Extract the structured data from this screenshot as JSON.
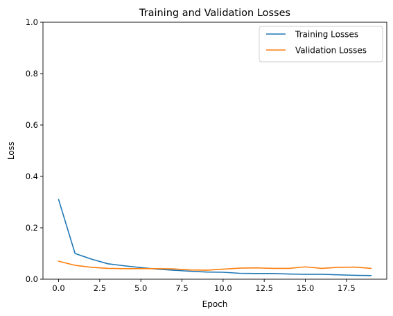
{
  "chart_data": {
    "type": "line",
    "title": "Training and Validation Losses",
    "xlabel": "Epoch",
    "ylabel": "Loss",
    "xlim": [
      -0.95,
      19.95
    ],
    "ylim": [
      0,
      1
    ],
    "xticks": [
      0.0,
      2.5,
      5.0,
      7.5,
      10.0,
      12.5,
      15.0,
      17.5
    ],
    "xtick_labels": [
      "0.0",
      "2.5",
      "5.0",
      "7.5",
      "10.0",
      "12.5",
      "15.0",
      "17.5"
    ],
    "yticks": [
      0.0,
      0.2,
      0.4,
      0.6,
      0.8,
      1.0
    ],
    "ytick_labels": [
      "0.0",
      "0.2",
      "0.4",
      "0.6",
      "0.8",
      "1.0"
    ],
    "grid": false,
    "legend_position": "top-right",
    "x": [
      0,
      1,
      2,
      3,
      4,
      5,
      6,
      7,
      8,
      9,
      10,
      11,
      12,
      13,
      14,
      15,
      16,
      17,
      18,
      19
    ],
    "series": [
      {
        "name": "Training Losses",
        "color": "#1f77b4",
        "values": [
          0.31,
          0.1,
          0.078,
          0.06,
          0.052,
          0.045,
          0.039,
          0.035,
          0.031,
          0.028,
          0.027,
          0.023,
          0.022,
          0.022,
          0.02,
          0.019,
          0.019,
          0.017,
          0.015,
          0.014
        ]
      },
      {
        "name": "Validation Losses",
        "color": "#ff7f0e",
        "values": [
          0.07,
          0.054,
          0.046,
          0.042,
          0.041,
          0.041,
          0.041,
          0.04,
          0.036,
          0.035,
          0.039,
          0.043,
          0.044,
          0.042,
          0.042,
          0.048,
          0.042,
          0.046,
          0.047,
          0.042
        ]
      }
    ]
  }
}
